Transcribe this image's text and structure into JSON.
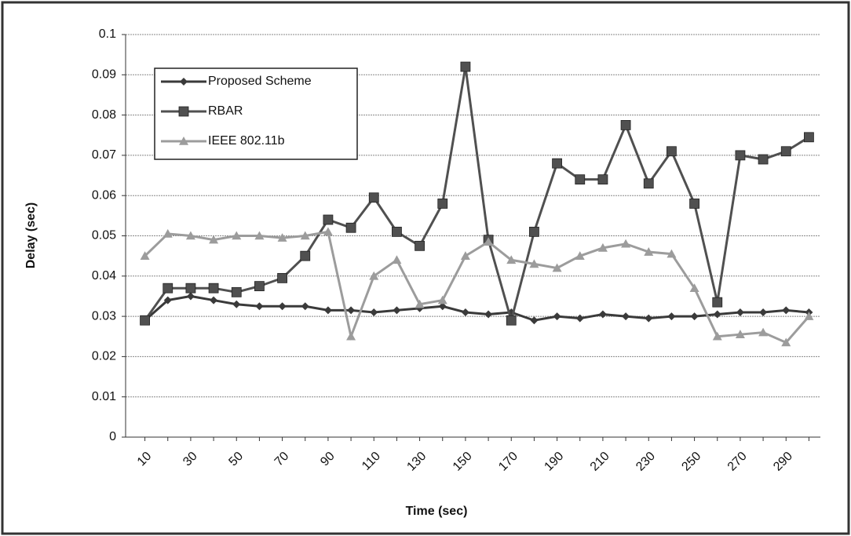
{
  "chart_data": {
    "type": "line",
    "x_label": "Time (sec)",
    "y_label": "Delay (sec)",
    "categories": [
      10,
      null,
      30,
      null,
      50,
      null,
      70,
      null,
      90,
      null,
      110,
      null,
      130,
      null,
      150,
      null,
      170,
      null,
      190,
      null,
      210,
      null,
      230,
      null,
      250,
      null,
      270,
      null,
      290,
      null
    ],
    "series": [
      {
        "name": "Proposed Scheme",
        "color": "#3a3a3a",
        "marker": "diamond",
        "values": [
          0.029,
          0.034,
          0.035,
          0.034,
          0.033,
          0.0325,
          0.0325,
          0.0325,
          0.0315,
          0.0315,
          0.031,
          0.0315,
          0.032,
          0.0325,
          0.031,
          0.0305,
          0.031,
          0.029,
          0.03,
          0.0295,
          0.0305,
          0.03,
          0.0295,
          0.03,
          0.03,
          0.0305,
          0.031,
          0.031,
          0.0315,
          0.031
        ]
      },
      {
        "name": "RBAR",
        "color": "#505050",
        "marker": "square",
        "values": [
          0.029,
          0.037,
          0.037,
          0.037,
          0.036,
          0.0375,
          0.0395,
          0.045,
          0.054,
          0.052,
          0.0595,
          0.051,
          0.0475,
          0.058,
          0.092,
          0.049,
          0.029,
          0.051,
          0.068,
          0.064,
          0.064,
          0.0775,
          0.063,
          0.071,
          0.058,
          0.0335,
          0.07,
          0.069,
          0.071,
          0.0745
        ]
      },
      {
        "name": "IEEE 802.11b",
        "color": "#9c9c9c",
        "marker": "triangle",
        "values": [
          0.045,
          0.0505,
          0.05,
          0.049,
          0.05,
          0.05,
          0.0495,
          0.05,
          0.051,
          0.025,
          0.04,
          0.044,
          0.033,
          0.034,
          0.045,
          0.0485,
          0.044,
          0.043,
          0.042,
          0.045,
          0.047,
          0.048,
          0.046,
          0.0455,
          0.037,
          0.025,
          0.0255,
          0.026,
          0.0235,
          0.03
        ]
      }
    ],
    "ylim": [
      0,
      0.1
    ],
    "yticks": [
      0,
      0.01,
      0.02,
      0.03,
      0.04,
      0.05,
      0.06,
      0.07,
      0.08,
      0.09,
      0.1
    ],
    "grid": true,
    "legend": "upper-left"
  }
}
